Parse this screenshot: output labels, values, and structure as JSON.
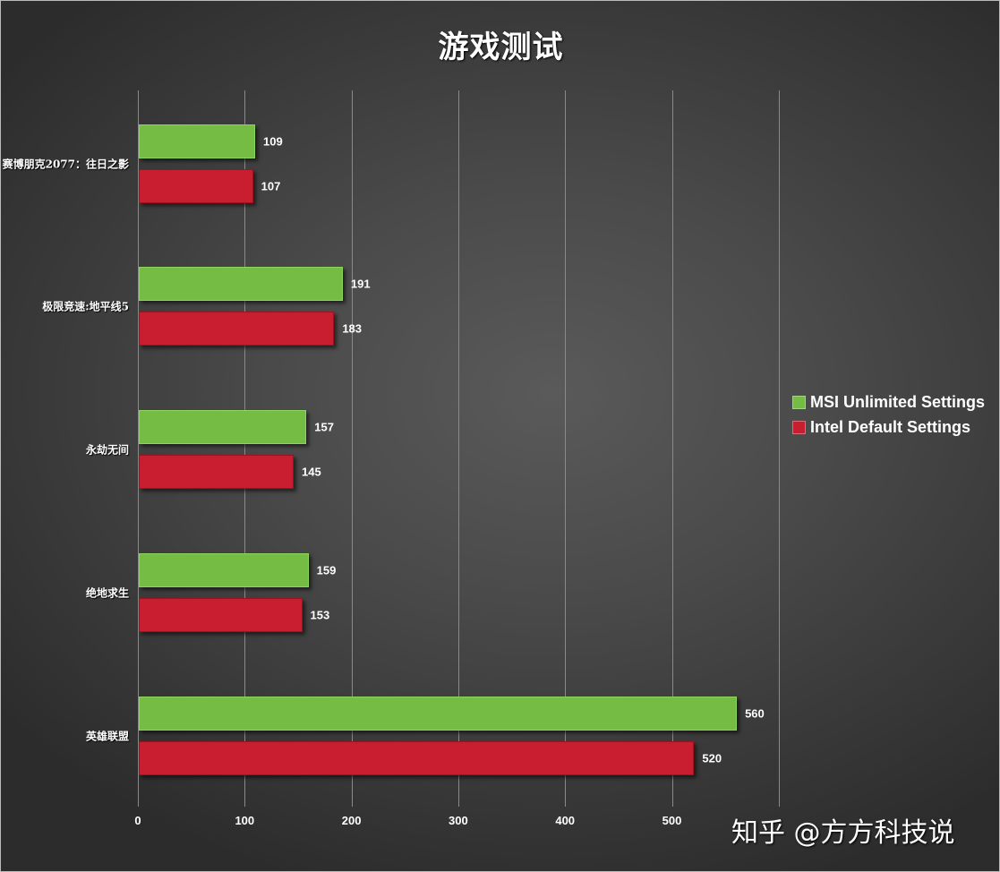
{
  "title": "游戏测试",
  "watermark": "知乎 @方方科技说",
  "colors": {
    "msi": "#74bc44",
    "intel": "#c81e30",
    "background": "#444444"
  },
  "legend": [
    {
      "label": "MSI Unlimited Settings",
      "color": "#74bc44"
    },
    {
      "label": "Intel Default Settings",
      "color": "#c81e30"
    }
  ],
  "axis": {
    "ticks": [
      "0",
      "100",
      "200",
      "300",
      "400",
      "500"
    ]
  },
  "chart_data": {
    "type": "bar",
    "orientation": "horizontal",
    "title": "游戏测试",
    "xlabel": "",
    "ylabel": "",
    "xlim": [
      0,
      600
    ],
    "grid": true,
    "legend_position": "right",
    "categories": [
      "赛博朋克2077：往日之影",
      "极限竞速:地平线5",
      "永劫无间",
      "绝地求生",
      "英雄联盟"
    ],
    "series": [
      {
        "name": "MSI Unlimited Settings",
        "color": "#74bc44",
        "values": [
          109,
          191,
          157,
          159,
          560
        ]
      },
      {
        "name": "Intel Default Settings",
        "color": "#c81e30",
        "values": [
          107,
          183,
          145,
          153,
          520
        ]
      }
    ],
    "x_tick_labels": [
      "0",
      "100",
      "200",
      "300",
      "400",
      "500"
    ]
  }
}
